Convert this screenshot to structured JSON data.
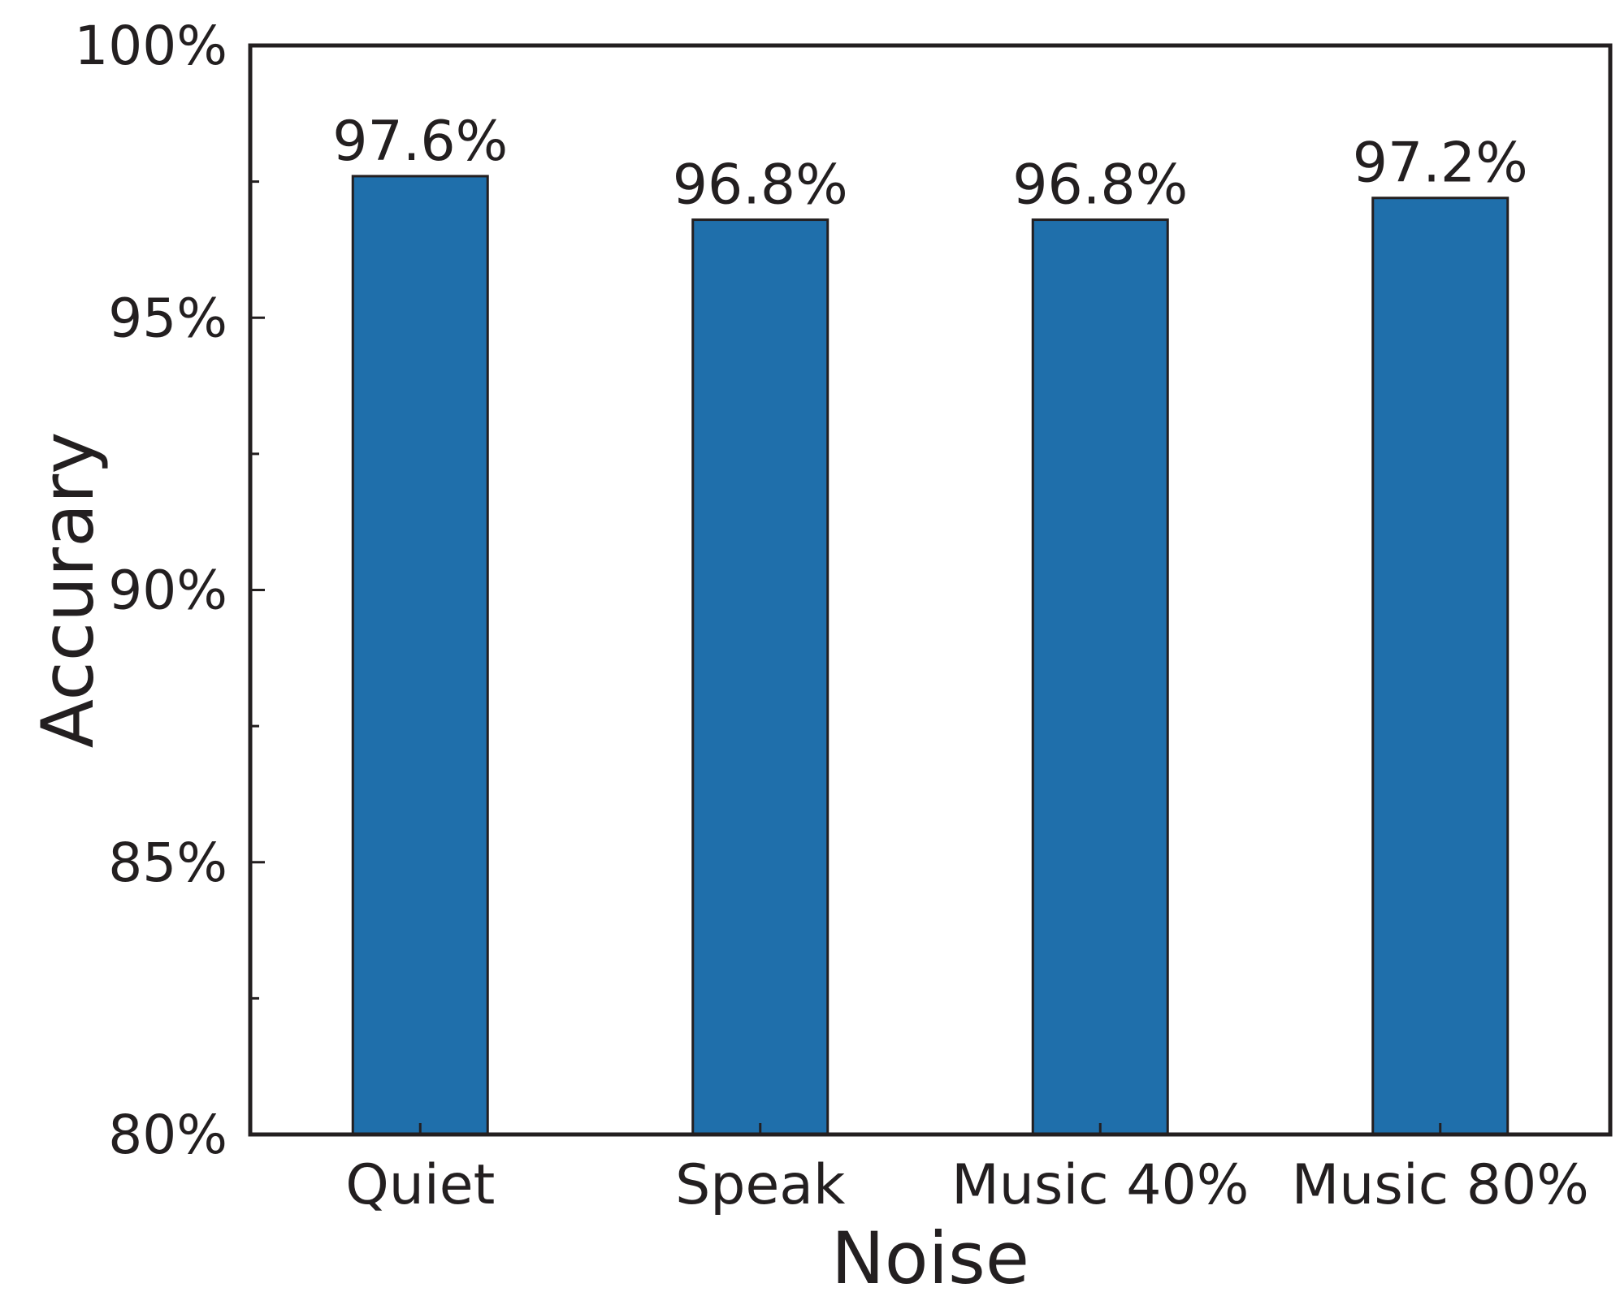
{
  "chart_data": {
    "type": "bar",
    "categories": [
      "Quiet",
      "Speak",
      "Music 40%",
      "Music 80%"
    ],
    "values": [
      97.6,
      96.8,
      96.8,
      97.2
    ],
    "data_labels": [
      "97.6%",
      "96.8%",
      "96.8%",
      "97.2%"
    ],
    "xlabel": "Noise",
    "ylabel": "Accurary",
    "ylim": [
      80,
      100
    ],
    "yticks": [
      80,
      85,
      90,
      95,
      100
    ],
    "ytick_labels": [
      "80%",
      "85%",
      "90%",
      "95%",
      "100%"
    ],
    "minor_yticks": [
      82.5,
      87.5,
      92.5,
      97.5
    ],
    "grid": false,
    "legend": "none",
    "colors": {
      "bar_fill": "#1f6fab",
      "bar_stroke": "#231f20",
      "axis": "#231f20",
      "text": "#231f20"
    }
  }
}
